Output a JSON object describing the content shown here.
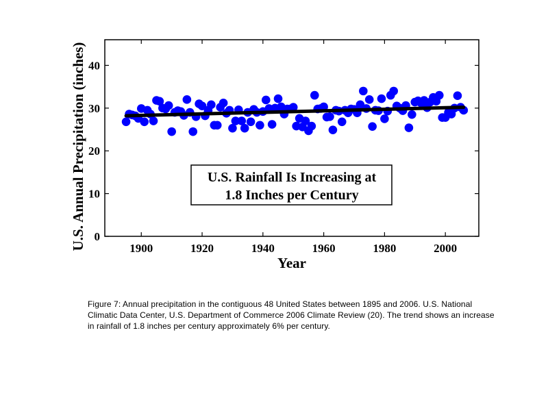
{
  "chart_data": {
    "type": "scatter",
    "xlabel": "Year",
    "ylabel": "U.S. Annual Precipitation (inches)",
    "xlim": [
      1888,
      2011
    ],
    "ylim": [
      0,
      46
    ],
    "xticks": [
      1900,
      1920,
      1940,
      1960,
      1980,
      2000
    ],
    "yticks": [
      0,
      10,
      20,
      30,
      40
    ],
    "annotation": [
      "U.S. Rainfall Is Increasing at",
      "1.8 Inches per Century"
    ],
    "point_color": "#0000ff",
    "trend_color": "#000000",
    "trend": {
      "x": [
        1895,
        2006
      ],
      "y": [
        28.2,
        30.2
      ]
    },
    "x": [
      1895,
      1896,
      1897,
      1898,
      1899,
      1900,
      1901,
      1902,
      1903,
      1904,
      1905,
      1906,
      1907,
      1908,
      1909,
      1910,
      1911,
      1912,
      1913,
      1914,
      1915,
      1916,
      1917,
      1918,
      1919,
      1920,
      1921,
      1922,
      1923,
      1924,
      1925,
      1926,
      1927,
      1928,
      1929,
      1930,
      1931,
      1932,
      1933,
      1934,
      1935,
      1936,
      1937,
      1938,
      1939,
      1940,
      1941,
      1942,
      1943,
      1944,
      1945,
      1946,
      1947,
      1948,
      1949,
      1950,
      1951,
      1952,
      1953,
      1954,
      1955,
      1956,
      1957,
      1958,
      1959,
      1960,
      1961,
      1962,
      1963,
      1964,
      1965,
      1966,
      1967,
      1968,
      1969,
      1970,
      1971,
      1972,
      1973,
      1974,
      1975,
      1976,
      1977,
      1978,
      1979,
      1980,
      1981,
      1982,
      1983,
      1984,
      1985,
      1986,
      1987,
      1988,
      1989,
      1990,
      1991,
      1992,
      1993,
      1994,
      1995,
      1996,
      1997,
      1998,
      1999,
      2000,
      2001,
      2002,
      2003,
      2004,
      2005,
      2006
    ],
    "y": [
      26.8,
      28.6,
      28.4,
      28.2,
      27.6,
      29.9,
      26.8,
      29.5,
      28.6,
      27.0,
      31.8,
      31.6,
      30.0,
      29.8,
      30.6,
      24.5,
      29.0,
      29.4,
      29.2,
      28.3,
      32.0,
      29.0,
      24.5,
      28.0,
      31.0,
      30.5,
      28.2,
      29.5,
      30.8,
      26.0,
      26.0,
      30.2,
      31.2,
      28.8,
      29.5,
      25.3,
      27.0,
      29.6,
      27.0,
      25.3,
      29.0,
      26.8,
      29.7,
      29.0,
      26.0,
      29.2,
      31.9,
      29.9,
      26.2,
      30.0,
      32.2,
      30.3,
      28.6,
      29.8,
      29.8,
      30.2,
      25.8,
      27.6,
      25.6,
      27.0,
      24.7,
      25.8,
      33.0,
      29.8,
      29.9,
      30.3,
      27.9,
      28.0,
      24.9,
      29.5,
      29.3,
      26.8,
      29.5,
      28.9,
      29.8,
      29.7,
      28.9,
      30.8,
      34.0,
      29.9,
      32.0,
      25.7,
      29.5,
      29.4,
      32.2,
      27.5,
      29.3,
      33.0,
      34.0,
      30.5,
      30.0,
      29.4,
      30.6,
      25.4,
      28.5,
      31.4,
      31.7,
      31.2,
      31.8,
      30.1,
      31.4,
      32.5,
      31.6,
      33.0,
      27.8,
      27.8,
      29.0,
      28.6,
      30.0,
      32.9,
      30.2,
      29.5
    ]
  },
  "caption": "Figure 7: Annual precipitation in the contiguous 48 United States between 1895 and 2006. U.S. National Climatic Data Center, U.S. Department of Commerce 2006 Climate Review (20). The trend shows an increase in rainfall of 1.8 inches per century approximately 6% per century."
}
